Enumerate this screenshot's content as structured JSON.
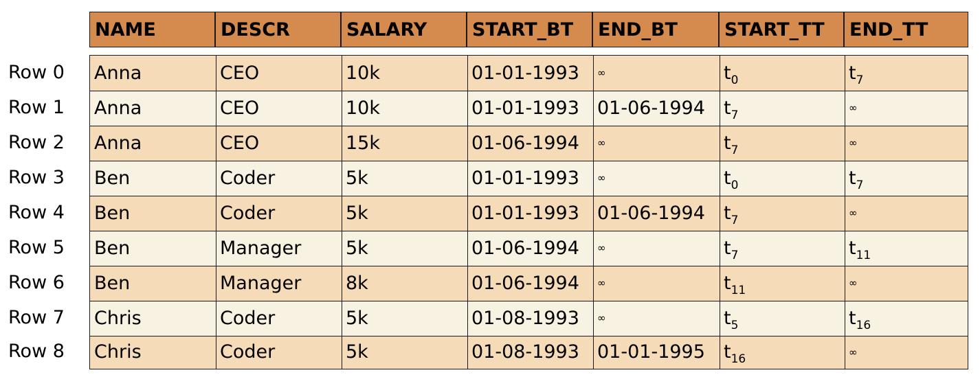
{
  "columns": [
    "NAME",
    "DESCR",
    "SALARY",
    "START_BT",
    "END_BT",
    "START_TT",
    "END_TT"
  ],
  "rows": [
    {
      "label": "Row 0",
      "cells": [
        "Anna",
        "CEO",
        "10k",
        "01-01-1993",
        "∞",
        "t|0",
        "t|7"
      ]
    },
    {
      "label": "Row 1",
      "cells": [
        "Anna",
        "CEO",
        "10k",
        "01-01-1993",
        "01-06-1994",
        "t|7",
        "∞"
      ]
    },
    {
      "label": "Row 2",
      "cells": [
        "Anna",
        "CEO",
        "15k",
        "01-06-1994",
        "∞",
        "t|7",
        "∞"
      ]
    },
    {
      "label": "Row 3",
      "cells": [
        "Ben",
        "Coder",
        "5k",
        "01-01-1993",
        "∞",
        "t|0",
        "t|7"
      ]
    },
    {
      "label": "Row 4",
      "cells": [
        "Ben",
        "Coder",
        "5k",
        "01-01-1993",
        "01-06-1994",
        "t|7",
        "∞"
      ]
    },
    {
      "label": "Row 5",
      "cells": [
        "Ben",
        "Manager",
        "5k",
        "01-06-1994",
        "∞",
        "t|7",
        "t|11"
      ]
    },
    {
      "label": "Row 6",
      "cells": [
        "Ben",
        "Manager",
        "8k",
        "01-06-1994",
        "∞",
        "t|11",
        "∞"
      ]
    },
    {
      "label": "Row 7",
      "cells": [
        "Chris",
        "Coder",
        "5k",
        "01-08-1993",
        "∞",
        "t|5",
        "t|16"
      ]
    },
    {
      "label": "Row 8",
      "cells": [
        "Chris",
        "Coder",
        "5k",
        "01-08-1993",
        "01-01-1995",
        "t|16",
        "∞"
      ]
    }
  ],
  "colors": {
    "header_bg": "#d58a4e",
    "row_odd": "#f6dbb8",
    "row_even": "#f7f2e1",
    "border": "#1a1a1a"
  }
}
